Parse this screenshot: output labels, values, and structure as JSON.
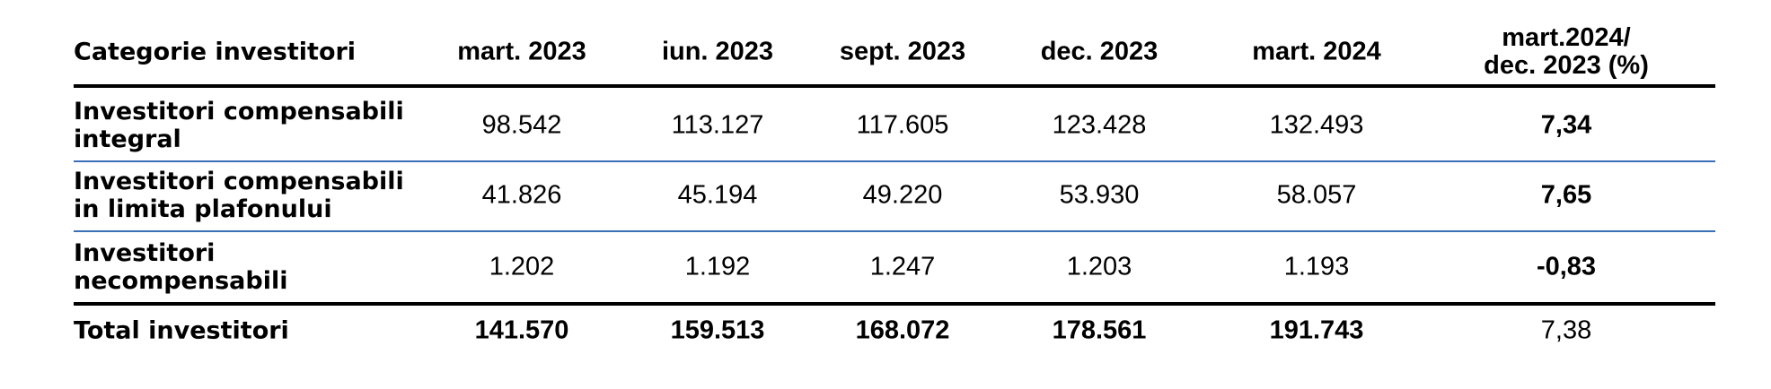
{
  "table": {
    "columns": [
      "Categorie investitori",
      "mart. 2023",
      "iun. 2023",
      "sept. 2023",
      "dec. 2023",
      "mart. 2024",
      "mart.2024/\ndec. 2023 (%)"
    ],
    "rows": [
      [
        "Investitori compensabili\nintegral",
        "98.542",
        "113.127",
        "117.605",
        "123.428",
        "132.493",
        "7,34"
      ],
      [
        "Investitori compensabili\nin limita plafonului",
        "41.826",
        "45.194",
        "49.220",
        "53.930",
        "58.057",
        "7,65"
      ],
      [
        "Investitori\nnecompensabili",
        "1.202",
        "1.192",
        "1.247",
        "1.203",
        "1.193",
        "-0,83"
      ]
    ],
    "total": [
      "Total investitori",
      "141.570",
      "159.513",
      "168.072",
      "178.561",
      "191.743",
      "7,38"
    ]
  }
}
